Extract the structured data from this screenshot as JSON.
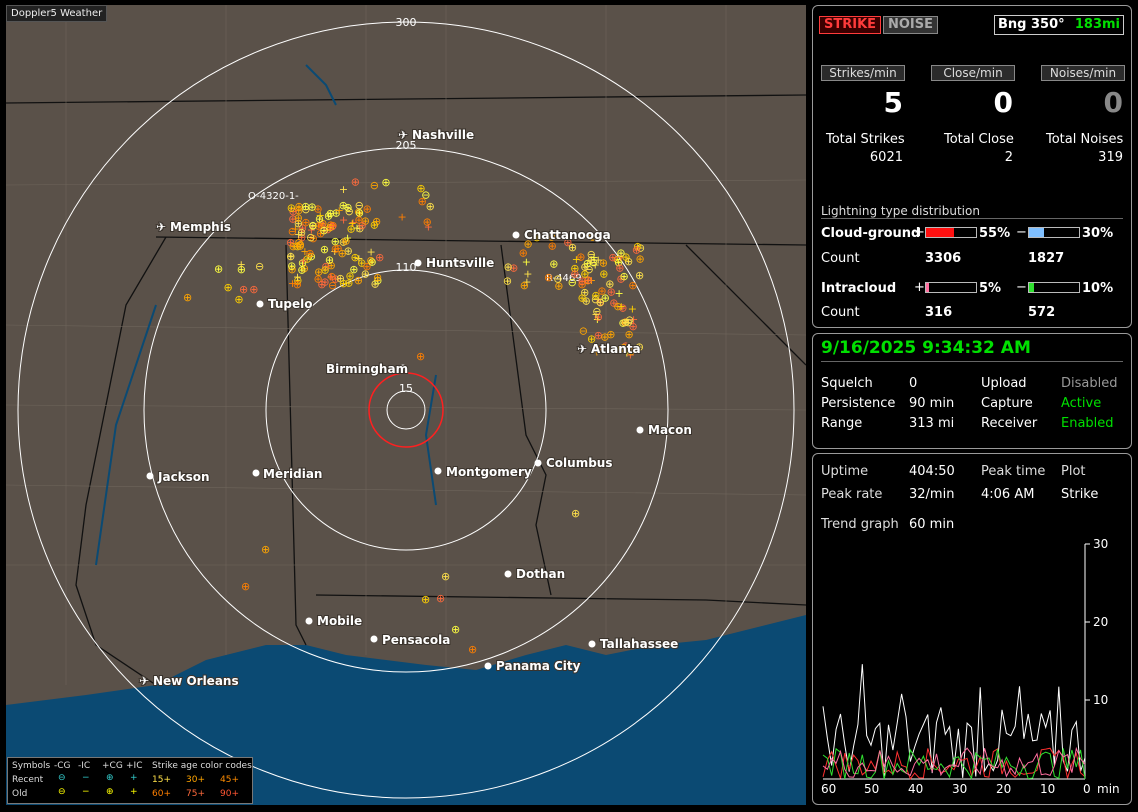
{
  "app_title": "Doppler5 Weather",
  "header": {
    "strike_btn": "STRIKE",
    "noise_btn": "NOISE",
    "bearing": "Bng 350°",
    "range_readout": "183mi"
  },
  "rates": {
    "strikes_label": "Strikes/min",
    "close_label": "Close/min",
    "noises_label": "Noises/min",
    "strikes": "5",
    "close": "0",
    "noises": "0"
  },
  "totals": {
    "strikes_label": "Total Strikes",
    "close_label": "Total Close",
    "noises_label": "Total Noises",
    "strikes": "6021",
    "close": "2",
    "noises": "319"
  },
  "distribution": {
    "title": "Lightning type distribution",
    "cg_label": "Cloud-ground",
    "ic_label": "Intracloud",
    "count_label": "Count",
    "cg_plus_pct": "55%",
    "cg_minus_pct": "30%",
    "cg_plus_count": "3306",
    "cg_minus_count": "1827",
    "ic_plus_pct": "5%",
    "ic_minus_pct": "10%",
    "ic_plus_count": "316",
    "ic_minus_count": "572",
    "plus": "+",
    "minus": "−",
    "fill": {
      "cg_plus": 55,
      "cg_minus": 30,
      "ic_plus": 5,
      "ic_minus": 10
    }
  },
  "status": {
    "datetime": "9/16/2025 9:34:32 AM",
    "squelch_label": "Squelch",
    "squelch": "0",
    "persistence_label": "Persistence",
    "persistence": "90 min",
    "range_label": "Range",
    "range": "313 mi",
    "upload_label": "Upload",
    "upload": "Disabled",
    "capture_label": "Capture",
    "capture": "Active",
    "receiver_label": "Receiver",
    "receiver": "Enabled"
  },
  "stats": {
    "uptime_label": "Uptime",
    "uptime": "404:50",
    "peak_time_label": "Peak time",
    "peak_time": "4:06 AM",
    "plot_label": "Plot",
    "plot": "Strike",
    "peak_rate_label": "Peak rate",
    "peak_rate": "32/min",
    "trend_label": "Trend graph",
    "trend": "60 min"
  },
  "trend_chart": {
    "y_ticks": [
      "30",
      "20",
      "10"
    ],
    "x_ticks": [
      "60",
      "50",
      "40",
      "30",
      "20",
      "10",
      "0"
    ],
    "x_unit": "min"
  },
  "map": {
    "ring_labels": [
      "300",
      "205",
      "110",
      "15"
    ],
    "markers": [
      "O-4320-1-",
      "R-4469"
    ],
    "cities": [
      "Nashville",
      "Memphis",
      "Chattanooga",
      "Huntsville",
      "Tupelo",
      "Atlanta",
      "Birmingham",
      "Macon",
      "Jackson",
      "Meridian",
      "Montgomery",
      "Columbus",
      "Dothan",
      "Mobile",
      "Pensacola",
      "Tallahassee",
      "Panama City",
      "New Orleans"
    ]
  },
  "legend": {
    "symbols": "Symbols",
    "cg_minus": "-CG",
    "ic_minus": "-IC",
    "cg_plus": "+CG",
    "ic_plus": "+IC",
    "age_title": "Strike age color codes",
    "recent": "Recent",
    "old": "Old",
    "a15": "15+",
    "a30": "30+",
    "a45": "45+",
    "a60": "60+",
    "a75": "75+",
    "a90": "90+"
  },
  "colors": {
    "water": "#0b4a73",
    "land": "#5a5149",
    "strike_red": "#ff2020",
    "accent_green": "#00e000"
  }
}
